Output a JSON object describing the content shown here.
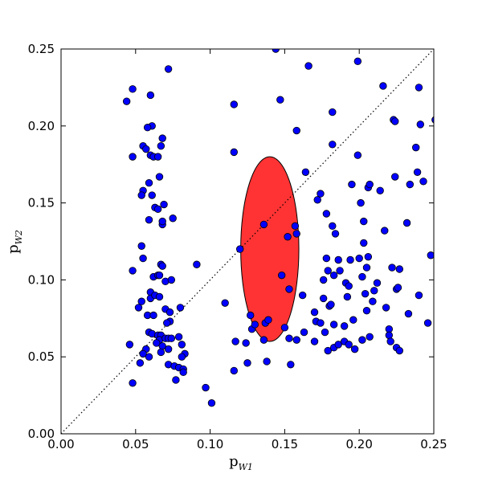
{
  "chart_data": {
    "type": "scatter",
    "title": "",
    "xlabel": {
      "base": "p",
      "sub": "W1"
    },
    "ylabel": {
      "base": "p",
      "sub": "W2"
    },
    "xlim": [
      0.0,
      0.25
    ],
    "ylim": [
      0.0,
      0.25
    ],
    "xticks": [
      "0.00",
      "0.05",
      "0.10",
      "0.15",
      "0.20",
      "0.25"
    ],
    "yticks": [
      "0.00",
      "0.05",
      "0.10",
      "0.15",
      "0.20",
      "0.25"
    ],
    "grid": false,
    "colors": {
      "points": "#0000ff",
      "point_edge": "#000000",
      "ellipse": "#ff3333",
      "diagonal": "#000000"
    },
    "reference_line": {
      "style": "dotted",
      "from": [
        0.0,
        0.0
      ],
      "to": [
        0.25,
        0.25
      ]
    },
    "ellipse": {
      "center": [
        0.14,
        0.12
      ],
      "half_width": 0.0195,
      "half_height": 0.06
    },
    "points": [
      [
        0.044,
        0.216
      ],
      [
        0.048,
        0.224
      ],
      [
        0.055,
        0.187
      ],
      [
        0.06,
        0.22
      ],
      [
        0.061,
        0.2
      ],
      [
        0.058,
        0.199
      ],
      [
        0.057,
        0.185
      ],
      [
        0.048,
        0.18
      ],
      [
        0.06,
        0.181
      ],
      [
        0.062,
        0.18
      ],
      [
        0.065,
        0.18
      ],
      [
        0.068,
        0.192
      ],
      [
        0.067,
        0.187
      ],
      [
        0.072,
        0.237
      ],
      [
        0.059,
        0.163
      ],
      [
        0.055,
        0.158
      ],
      [
        0.054,
        0.155
      ],
      [
        0.061,
        0.155
      ],
      [
        0.063,
        0.147
      ],
      [
        0.065,
        0.146
      ],
      [
        0.069,
        0.149
      ],
      [
        0.066,
        0.167
      ],
      [
        0.059,
        0.139
      ],
      [
        0.068,
        0.136
      ],
      [
        0.068,
        0.138
      ],
      [
        0.075,
        0.14
      ],
      [
        0.054,
        0.122
      ],
      [
        0.055,
        0.114
      ],
      [
        0.048,
        0.106
      ],
      [
        0.067,
        0.11
      ],
      [
        0.068,
        0.109
      ],
      [
        0.062,
        0.102
      ],
      [
        0.065,
        0.103
      ],
      [
        0.07,
        0.099
      ],
      [
        0.074,
        0.1
      ],
      [
        0.066,
        0.103
      ],
      [
        0.054,
        0.086
      ],
      [
        0.052,
        0.082
      ],
      [
        0.06,
        0.092
      ],
      [
        0.06,
        0.088
      ],
      [
        0.063,
        0.09
      ],
      [
        0.066,
        0.089
      ],
      [
        0.058,
        0.077
      ],
      [
        0.062,
        0.077
      ],
      [
        0.07,
        0.081
      ],
      [
        0.073,
        0.079
      ],
      [
        0.073,
        0.073
      ],
      [
        0.071,
        0.072
      ],
      [
        0.08,
        0.082
      ],
      [
        0.059,
        0.066
      ],
      [
        0.061,
        0.065
      ],
      [
        0.065,
        0.064
      ],
      [
        0.067,
        0.064
      ],
      [
        0.066,
        0.061
      ],
      [
        0.07,
        0.062
      ],
      [
        0.072,
        0.062
      ],
      [
        0.074,
        0.062
      ],
      [
        0.079,
        0.063
      ],
      [
        0.046,
        0.058
      ],
      [
        0.064,
        0.059
      ],
      [
        0.068,
        0.057
      ],
      [
        0.057,
        0.055
      ],
      [
        0.055,
        0.052
      ],
      [
        0.059,
        0.05
      ],
      [
        0.067,
        0.053
      ],
      [
        0.072,
        0.055
      ],
      [
        0.081,
        0.058
      ],
      [
        0.083,
        0.052
      ],
      [
        0.081,
        0.05
      ],
      [
        0.053,
        0.046
      ],
      [
        0.072,
        0.045
      ],
      [
        0.076,
        0.044
      ],
      [
        0.079,
        0.043
      ],
      [
        0.082,
        0.042
      ],
      [
        0.082,
        0.04
      ],
      [
        0.077,
        0.035
      ],
      [
        0.048,
        0.033
      ],
      [
        0.091,
        0.11
      ],
      [
        0.097,
        0.03
      ],
      [
        0.101,
        0.02
      ],
      [
        0.11,
        0.085
      ],
      [
        0.116,
        0.214
      ],
      [
        0.116,
        0.183
      ],
      [
        0.12,
        0.12
      ],
      [
        0.117,
        0.06
      ],
      [
        0.124,
        0.059
      ],
      [
        0.116,
        0.041
      ],
      [
        0.125,
        0.046
      ],
      [
        0.127,
        0.077
      ],
      [
        0.128,
        0.068
      ],
      [
        0.13,
        0.071
      ],
      [
        0.136,
        0.136
      ],
      [
        0.137,
        0.072
      ],
      [
        0.139,
        0.074
      ],
      [
        0.136,
        0.061
      ],
      [
        0.138,
        0.047
      ],
      [
        0.144,
        0.25
      ],
      [
        0.147,
        0.217
      ],
      [
        0.148,
        0.103
      ],
      [
        0.15,
        0.069
      ],
      [
        0.152,
        0.128
      ],
      [
        0.153,
        0.094
      ],
      [
        0.154,
        0.045
      ],
      [
        0.153,
        0.062
      ],
      [
        0.158,
        0.197
      ],
      [
        0.157,
        0.135
      ],
      [
        0.158,
        0.13
      ],
      [
        0.158,
        0.061
      ],
      [
        0.162,
        0.09
      ],
      [
        0.163,
        0.066
      ],
      [
        0.164,
        0.17
      ],
      [
        0.166,
        0.239
      ],
      [
        0.17,
        0.079
      ],
      [
        0.17,
        0.06
      ],
      [
        0.171,
        0.073
      ],
      [
        0.172,
        0.152
      ],
      [
        0.174,
        0.156
      ],
      [
        0.174,
        0.072
      ],
      [
        0.176,
        0.088
      ],
      [
        0.176,
        0.1
      ],
      [
        0.177,
        0.066
      ],
      [
        0.178,
        0.114
      ],
      [
        0.178,
        0.143
      ],
      [
        0.179,
        0.106
      ],
      [
        0.179,
        0.054
      ],
      [
        0.18,
        0.083
      ],
      [
        0.181,
        0.084
      ],
      [
        0.182,
        0.209
      ],
      [
        0.182,
        0.188
      ],
      [
        0.182,
        0.135
      ],
      [
        0.183,
        0.103
      ],
      [
        0.183,
        0.071
      ],
      [
        0.183,
        0.056
      ],
      [
        0.184,
        0.13
      ],
      [
        0.186,
        0.113
      ],
      [
        0.186,
        0.058
      ],
      [
        0.187,
        0.106
      ],
      [
        0.19,
        0.06
      ],
      [
        0.19,
        0.07
      ],
      [
        0.191,
        0.098
      ],
      [
        0.192,
        0.089
      ],
      [
        0.193,
        0.096
      ],
      [
        0.193,
        0.058
      ],
      [
        0.194,
        0.113
      ],
      [
        0.195,
        0.162
      ],
      [
        0.196,
        0.074
      ],
      [
        0.197,
        0.055
      ],
      [
        0.199,
        0.242
      ],
      [
        0.199,
        0.181
      ],
      [
        0.2,
        0.114
      ],
      [
        0.201,
        0.15
      ],
      [
        0.202,
        0.102
      ],
      [
        0.202,
        0.061
      ],
      [
        0.203,
        0.138
      ],
      [
        0.203,
        0.124
      ],
      [
        0.204,
        0.091
      ],
      [
        0.205,
        0.108
      ],
      [
        0.205,
        0.08
      ],
      [
        0.206,
        0.16
      ],
      [
        0.206,
        0.115
      ],
      [
        0.207,
        0.162
      ],
      [
        0.207,
        0.063
      ],
      [
        0.209,
        0.086
      ],
      [
        0.21,
        0.093
      ],
      [
        0.212,
        0.098
      ],
      [
        0.214,
        0.158
      ],
      [
        0.216,
        0.226
      ],
      [
        0.217,
        0.132
      ],
      [
        0.218,
        0.082
      ],
      [
        0.22,
        0.068
      ],
      [
        0.22,
        0.064
      ],
      [
        0.221,
        0.06
      ],
      [
        0.222,
        0.108
      ],
      [
        0.223,
        0.204
      ],
      [
        0.224,
        0.203
      ],
      [
        0.224,
        0.167
      ],
      [
        0.225,
        0.094
      ],
      [
        0.225,
        0.056
      ],
      [
        0.226,
        0.095
      ],
      [
        0.227,
        0.107
      ],
      [
        0.227,
        0.054
      ],
      [
        0.232,
        0.137
      ],
      [
        0.233,
        0.078
      ],
      [
        0.234,
        0.162
      ],
      [
        0.238,
        0.186
      ],
      [
        0.239,
        0.17
      ],
      [
        0.24,
        0.225
      ],
      [
        0.24,
        0.09
      ],
      [
        0.241,
        0.201
      ],
      [
        0.243,
        0.164
      ],
      [
        0.246,
        0.072
      ],
      [
        0.248,
        0.116
      ],
      [
        0.251,
        0.204
      ]
    ]
  }
}
